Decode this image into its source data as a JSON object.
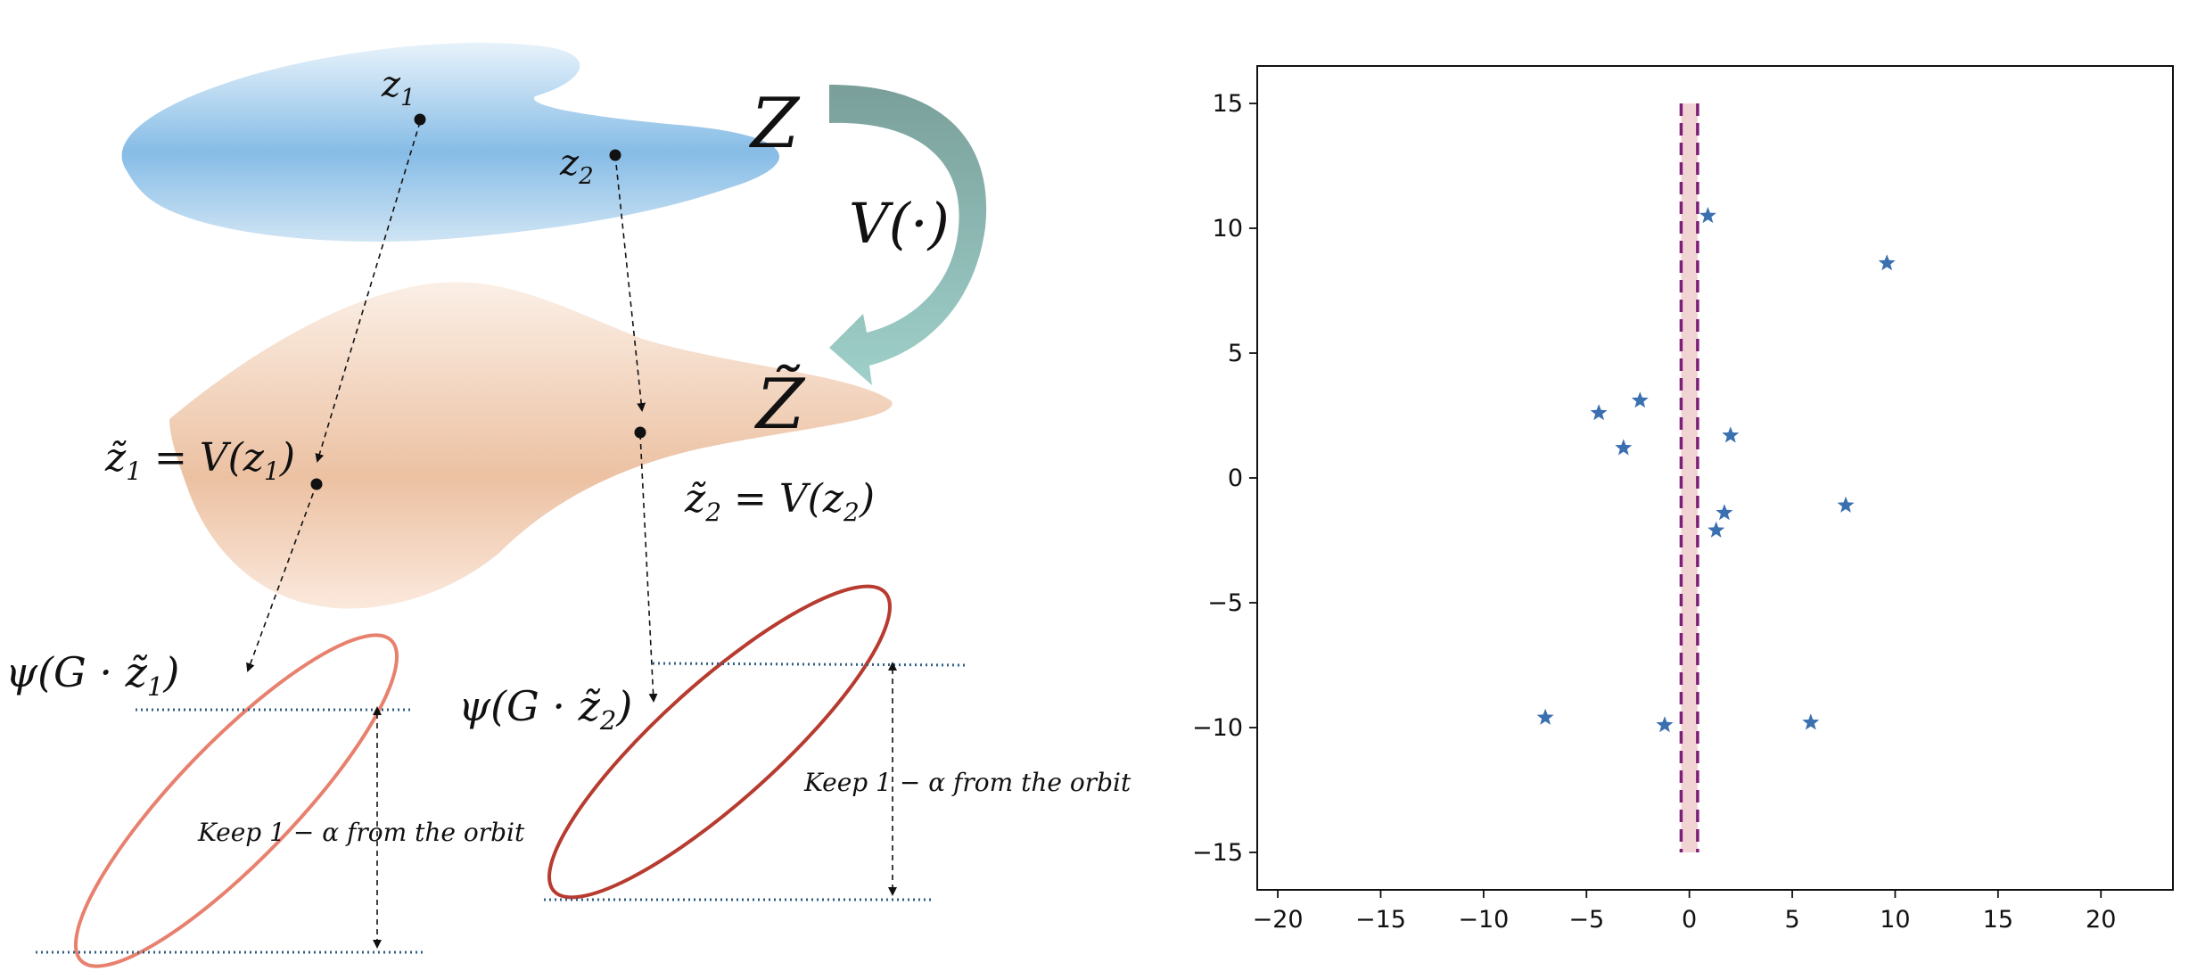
{
  "diagram": {
    "point_labels": {
      "z1": {
        "base": "z",
        "sub": "1"
      },
      "z2": {
        "base": "z",
        "sub": "2"
      }
    },
    "set_labels": {
      "Z": "Z",
      "Z_tilde": "Z̃"
    },
    "map_label": "V(·)",
    "mapped_labels": {
      "z1t": {
        "lhs_base": "z̃",
        "lhs_sub": "1",
        "rhs": " = V(z",
        "rhs_sub": "1",
        "rhs_close": ")"
      },
      "z2t": {
        "lhs_base": "z̃",
        "lhs_sub": "2",
        "rhs": " = V(z",
        "rhs_sub": "2",
        "rhs_close": ")"
      }
    },
    "orbit_labels": {
      "psi1": {
        "text": "ψ(G · z̃",
        "sub": "1",
        "close": ")"
      },
      "psi2": {
        "text": "ψ(G · z̃",
        "sub": "2",
        "close": ")"
      }
    },
    "keep_label": "Keep 1 − α from the orbit",
    "colors": {
      "Z_set": "#7fb6e3",
      "Z_tilde_set": "#ecbf9f",
      "arrow_top": "#7a9f9a",
      "arrow_bottom": "#9fd0ca",
      "ellipse1": "#e8806e",
      "ellipse2": "#b73b2f",
      "dotted_line": "#2e5e86"
    }
  },
  "chart_data": {
    "type": "scatter",
    "xlim": [
      -21,
      23.5
    ],
    "ylim": [
      -16.5,
      16.5
    ],
    "xticks": [
      -20,
      -15,
      -10,
      -5,
      0,
      5,
      10,
      15,
      20
    ],
    "yticks": [
      15,
      10,
      5,
      0,
      -5,
      -10,
      -15
    ],
    "tick_labels_x": [
      "−20",
      "−15",
      "−10",
      "−5",
      "0",
      "5",
      "10",
      "15",
      "20"
    ],
    "tick_labels_y": [
      "15",
      "10",
      "5",
      "0",
      "−5",
      "−10",
      "−15"
    ],
    "grid": false,
    "marker": "star",
    "marker_color": "#3a6fb0",
    "band": {
      "x_min": -0.4,
      "x_max": 0.4,
      "y_min": -15,
      "y_max": 15,
      "fill": "#f2d3d3",
      "line_color": "#7b1f77",
      "line_style": "dashed"
    },
    "points": [
      {
        "x": 0.9,
        "y": 10.5
      },
      {
        "x": 9.6,
        "y": 8.6
      },
      {
        "x": -4.4,
        "y": 2.6
      },
      {
        "x": -2.4,
        "y": 3.1
      },
      {
        "x": -3.2,
        "y": 1.2
      },
      {
        "x": 2.0,
        "y": 1.7
      },
      {
        "x": 7.6,
        "y": -1.1
      },
      {
        "x": 1.7,
        "y": -1.4
      },
      {
        "x": 1.3,
        "y": -2.1
      },
      {
        "x": -7.0,
        "y": -9.6
      },
      {
        "x": -1.2,
        "y": -9.9
      },
      {
        "x": 5.9,
        "y": -9.8
      }
    ]
  }
}
